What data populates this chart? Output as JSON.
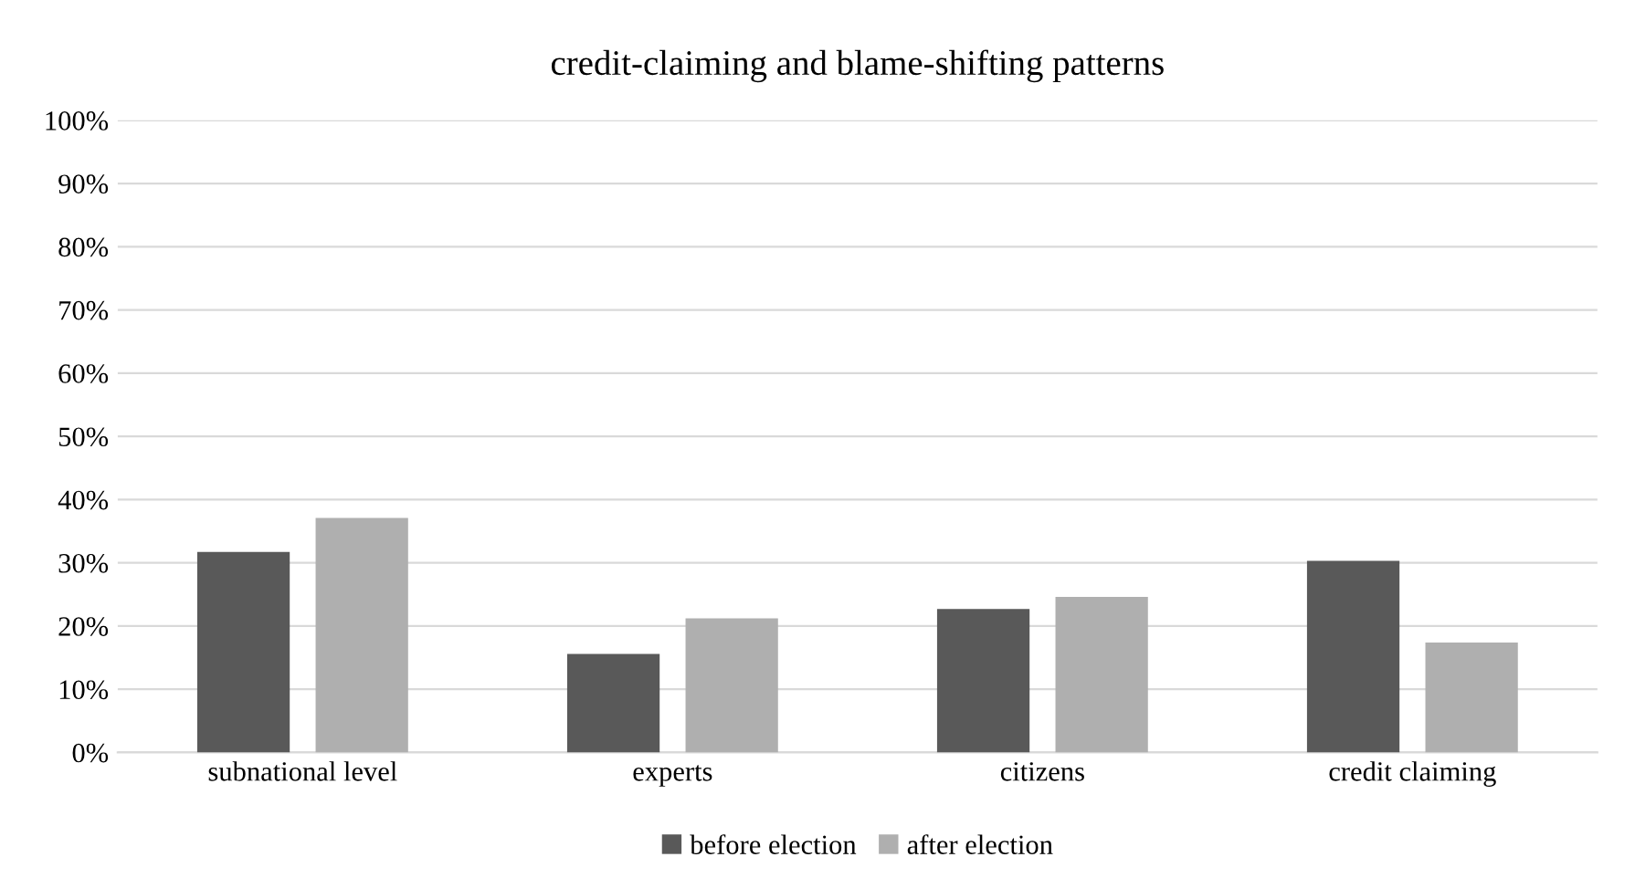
{
  "chart_data": {
    "type": "bar",
    "title": "credit-claiming and blame-shifting patterns",
    "categories": [
      "subnational level",
      "experts",
      "citizens",
      "credit claiming"
    ],
    "series": [
      {
        "name": "before election",
        "color": "#595959",
        "values": [
          31.7,
          15.6,
          22.7,
          30.3
        ]
      },
      {
        "name": "after election",
        "color": "#afafaf",
        "values": [
          37.1,
          21.2,
          24.6,
          17.4
        ]
      }
    ],
    "ylim": [
      0,
      100
    ],
    "yticks": [
      {
        "value": 0,
        "label": "0%"
      },
      {
        "value": 10,
        "label": "10%"
      },
      {
        "value": 20,
        "label": "20%"
      },
      {
        "value": 30,
        "label": "30%"
      },
      {
        "value": 40,
        "label": "40%"
      },
      {
        "value": 50,
        "label": "50%"
      },
      {
        "value": 60,
        "label": "60%"
      },
      {
        "value": 70,
        "label": "70%"
      },
      {
        "value": 80,
        "label": "80%"
      },
      {
        "value": 90,
        "label": "90%"
      },
      {
        "value": 100,
        "label": "100%"
      }
    ],
    "grid": "y",
    "legend": "bottom"
  }
}
